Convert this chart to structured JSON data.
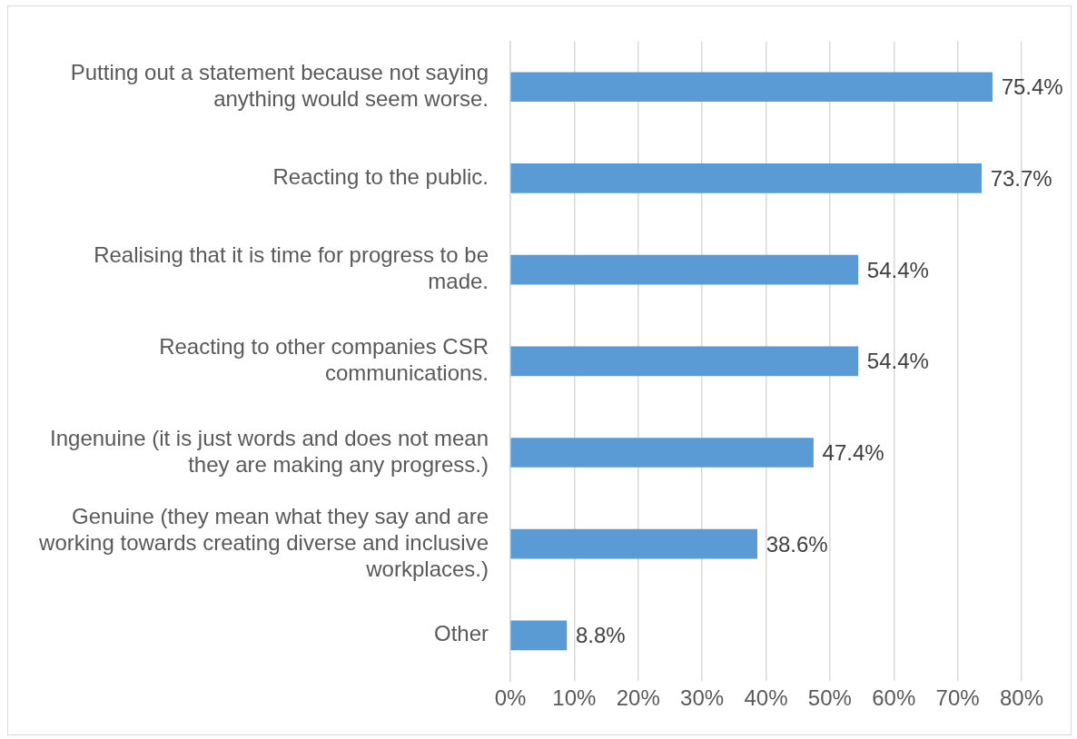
{
  "chart_data": {
    "type": "bar",
    "orientation": "horizontal",
    "categories": [
      "Putting out a statement because not saying anything would seem worse.",
      "Reacting to the public.",
      "Realising that it is time for progress to be made.",
      "Reacting to other companies CSR communications.",
      "Ingenuine (it is just words and does not mean they are making any progress.)",
      "Genuine (they mean what they say and are working towards creating diverse and inclusive workplaces.)",
      "Other"
    ],
    "values": [
      75.4,
      73.7,
      54.4,
      54.4,
      47.4,
      38.6,
      8.8
    ],
    "value_labels": [
      "75.4%",
      "73.7%",
      "54.4%",
      "54.4%",
      "47.4%",
      "38.6%",
      "8.8%"
    ],
    "color": "#5b9bd5",
    "xlim": [
      0,
      80
    ],
    "xticks": [
      {
        "value": 0,
        "label": "0%"
      },
      {
        "value": 10,
        "label": "10%"
      },
      {
        "value": 20,
        "label": "20%"
      },
      {
        "value": 30,
        "label": "30%"
      },
      {
        "value": 40,
        "label": "40%"
      },
      {
        "value": 50,
        "label": "50%"
      },
      {
        "value": 60,
        "label": "60%"
      },
      {
        "value": 70,
        "label": "70%"
      },
      {
        "value": 80,
        "label": "80%"
      }
    ],
    "grid": "x",
    "legend": false
  }
}
